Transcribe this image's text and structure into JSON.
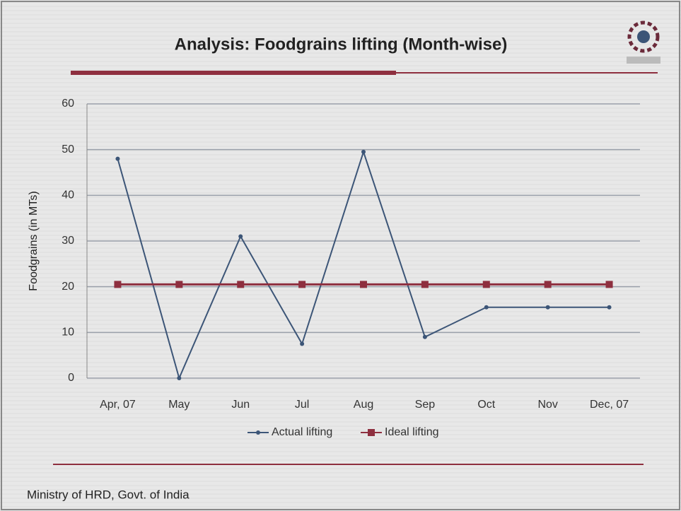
{
  "chart_data": {
    "type": "line",
    "title": "Analysis: Foodgrains lifting (Month-wise)",
    "ylabel": "Foodgrains (in MTs)",
    "categories": [
      "Apr, 07",
      "May",
      "Jun",
      "Jul",
      "Aug",
      "Sep",
      "Oct",
      "Nov",
      "Dec, 07"
    ],
    "series": [
      {
        "name": "Actual lifting",
        "color": "#3c5577",
        "values": [
          48,
          0,
          31,
          7.5,
          49.5,
          9,
          15.5,
          15.5,
          15.5
        ]
      },
      {
        "name": "Ideal lifting",
        "color": "#8e2f3f",
        "values": [
          20.5,
          20.5,
          20.5,
          20.5,
          20.5,
          20.5,
          20.5,
          20.5,
          20.5
        ]
      }
    ],
    "ylim": [
      0,
      60
    ],
    "yticks": [
      0,
      10,
      20,
      30,
      40,
      50,
      60
    ],
    "grid": true,
    "legend": "bottom"
  },
  "footer": "Ministry of HRD, Govt. of India"
}
